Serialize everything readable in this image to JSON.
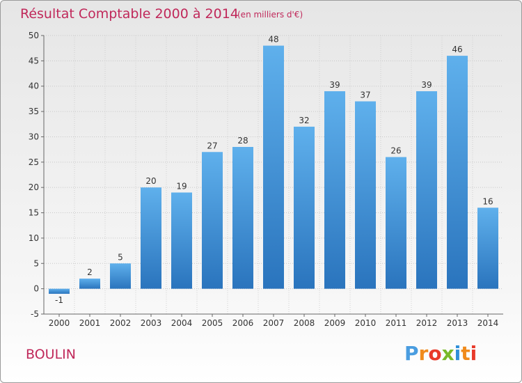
{
  "chart_data": {
    "type": "bar",
    "title": "Résultat Comptable 2000 à 2014",
    "subtitle": "(en milliers d'€)",
    "categories": [
      "2000",
      "2001",
      "2002",
      "2003",
      "2004",
      "2005",
      "2006",
      "2007",
      "2008",
      "2009",
      "2010",
      "2011",
      "2012",
      "2013",
      "2014"
    ],
    "values": [
      -1,
      2,
      5,
      20,
      19,
      27,
      28,
      48,
      32,
      39,
      37,
      26,
      39,
      46,
      16
    ],
    "value_labels": [
      "-1",
      "2",
      "5",
      "20",
      "19",
      "27",
      "28",
      "48",
      "32",
      "39",
      "37",
      "26",
      "39",
      "46",
      "16"
    ],
    "y_ticks": [
      -5,
      0,
      5,
      10,
      15,
      20,
      25,
      30,
      35,
      40,
      45,
      50
    ],
    "ylim": [
      -5,
      50
    ],
    "grid": true,
    "bar_color": "#3f8fd6",
    "bar_color_light": "#5fb0ec",
    "bar_color_dark": "#2a74bd"
  },
  "commune": "BOULIN",
  "logo": {
    "letters": [
      "P",
      "r",
      "o",
      "x",
      "i",
      "t",
      "i"
    ],
    "colors": [
      "#4a9de0",
      "#f08a1c",
      "#e83a2a",
      "#7ab928",
      "#2f8fd8",
      "#f08a1c",
      "#e83a2a"
    ]
  }
}
